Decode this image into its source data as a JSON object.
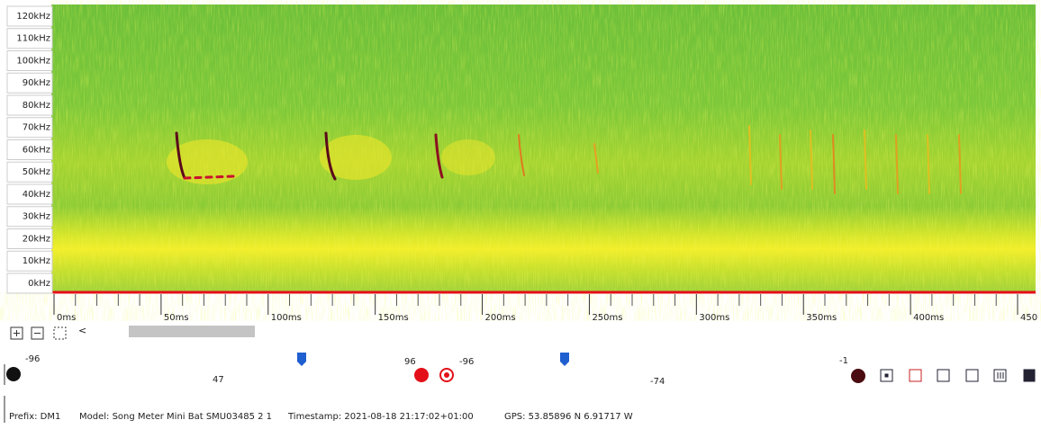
{
  "spectrogram": {
    "freq_labels": [
      "120kHz",
      "110kHz",
      "100kHz",
      "90kHz",
      "80kHz",
      "70kHz",
      "60kHz",
      "50kHz",
      "40kHz",
      "30kHz",
      "20kHz",
      "10kHz",
      "0kHz"
    ]
  },
  "time_axis": {
    "labels": [
      "0ms",
      "50ms",
      "100ms",
      "150ms",
      "200ms",
      "250ms",
      "300ms",
      "350ms",
      "400ms",
      "450"
    ]
  },
  "zoom_controls": {
    "back": "<"
  },
  "sliders": {
    "left_min": "-96",
    "left_value": "47",
    "mid_max": "96",
    "mid_min": "-96",
    "right_value": "-74",
    "right_max": "-1"
  },
  "footer": {
    "prefix": "Prefix: DM1",
    "model": "Model: Song Meter Mini Bat SMU03485 2 1",
    "timestamp": "Timestamp: 2021-08-18 21:17:02+01:00",
    "gps": "GPS: 53.85896 N 6.91717 W"
  }
}
